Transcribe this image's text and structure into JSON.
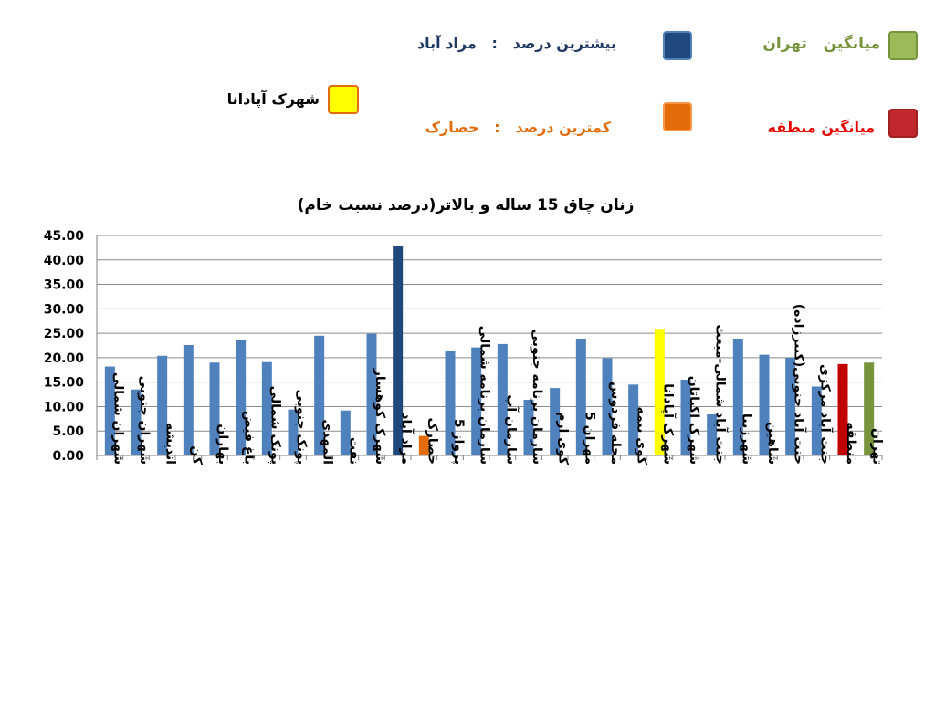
{
  "legend": {
    "max_label": "بیشترین درصد   :   مراد آباد",
    "min_label": "کمترین درصد   :   حصارک",
    "tehran_label": "میانگین   تهران",
    "region_label": "میانگین منطقه",
    "apadana_label": "شهرک آپادانا"
  },
  "colors": {
    "default": "#4f81bd",
    "max": "#1f497d",
    "min": "#e36c09",
    "apadana": "#ffff00",
    "region": "#c00000",
    "tehran": "#77933c",
    "tehran_text": "#77933c",
    "region_text": "#e60000",
    "max_text": "#1f3864",
    "min_text": "#e36c09"
  },
  "chart_data": {
    "type": "bar",
    "title": "زنان چاق 15 ساله و بالاتر(درصد نسبت خام)",
    "ylim": [
      0,
      45
    ],
    "grid": true,
    "ytick_labels": [
      "0.00",
      "5.00",
      "10.00",
      "15.00",
      "20.00",
      "25.00",
      "30.00",
      "35.00",
      "40.00",
      "45.00"
    ],
    "categories": [
      "شهران شمالی",
      "شهران جنوبی",
      "اندیشه",
      "کن",
      "بهاران",
      "باغ فیض",
      "پونک شمالی",
      "پونک جنوبی",
      "المهدی",
      "نفت",
      "شهرک کوهسار",
      "مراد آباد",
      "حصارک",
      "پرواز 5",
      "سازمان برنامه شمالی",
      "سازمان آب",
      "سازمان برنامه جنوبی",
      "کوی ارم",
      "مهران 5",
      "محله فردوس",
      "کوی بیمه",
      "شهرک آپادانا",
      "شهرک اکباتان",
      "جنت آباد شمالی-مبعث",
      "شهرزیبا",
      "شاهین",
      "جنت آباد جنوبی(کبیرزاده)",
      "جنت آباد مرکزی",
      "منطقه",
      "تهران"
    ],
    "values": [
      18.2,
      13.5,
      20.4,
      22.6,
      19.0,
      23.6,
      19.1,
      9.4,
      24.5,
      9.2,
      24.9,
      42.8,
      4.0,
      21.4,
      22.1,
      22.8,
      11.4,
      13.8,
      23.9,
      19.9,
      14.5,
      25.9,
      15.5,
      8.4,
      23.9,
      20.6,
      20.0,
      14.1,
      18.7,
      19.0
    ],
    "color_keys": [
      "default",
      "default",
      "default",
      "default",
      "default",
      "default",
      "default",
      "default",
      "default",
      "default",
      "default",
      "max",
      "min",
      "default",
      "default",
      "default",
      "default",
      "default",
      "default",
      "default",
      "default",
      "apadana",
      "default",
      "default",
      "default",
      "default",
      "default",
      "default",
      "region",
      "tehran"
    ]
  }
}
